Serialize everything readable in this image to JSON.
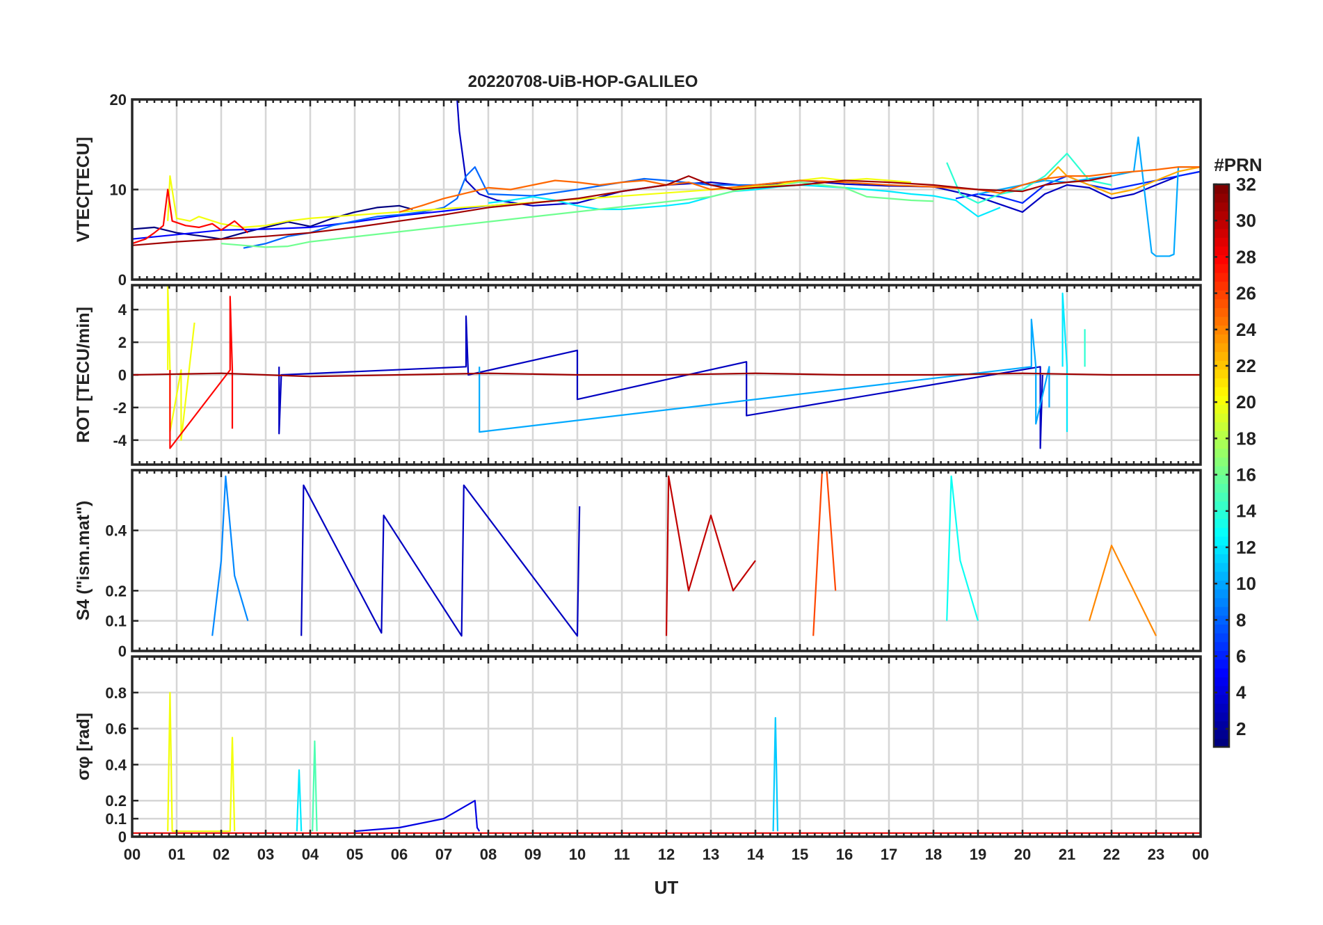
{
  "figure_title": "20220708-UiB-HOP-GALILEO",
  "colorbar": {
    "label": "#PRN",
    "ticks": [
      "2",
      "4",
      "6",
      "8",
      "10",
      "12",
      "14",
      "16",
      "18",
      "20",
      "22",
      "24",
      "26",
      "28",
      "30",
      "32"
    ],
    "range": [
      1,
      32
    ],
    "colormap": "jet"
  },
  "x_axis": {
    "label": "UT",
    "tick_labels": [
      "00",
      "01",
      "02",
      "03",
      "04",
      "05",
      "06",
      "07",
      "08",
      "09",
      "10",
      "11",
      "12",
      "13",
      "14",
      "15",
      "16",
      "17",
      "18",
      "19",
      "20",
      "21",
      "22",
      "23",
      "00"
    ],
    "range_hours": [
      0,
      24
    ]
  },
  "chart_data": [
    {
      "type": "line",
      "panel": "vtec",
      "ylabel": "VTEC[TECU]",
      "ylim": [
        0,
        20
      ],
      "yticks": [
        0,
        10,
        20
      ],
      "grid": true,
      "series": [
        {
          "prn": 1,
          "x": [
            0.0,
            0.5,
            1.0,
            1.6,
            2.0,
            2.5,
            3.0,
            3.5,
            4.0,
            4.5,
            5.0,
            5.5,
            6.0,
            6.3
          ],
          "y": [
            5.6,
            5.8,
            5.2,
            4.8,
            4.5,
            5.2,
            5.8,
            6.4,
            5.9,
            6.8,
            7.5,
            8.0,
            8.2,
            7.8
          ]
        },
        {
          "prn": 3,
          "x": [
            7.3,
            7.35,
            7.5,
            7.8,
            8.2,
            9.0,
            10.0,
            11.0,
            12.0,
            13.0,
            14.0,
            15.0,
            16.0,
            17.0,
            18.0,
            19.0,
            20.0,
            20.5,
            21.0,
            21.5,
            22.0,
            22.5,
            23.0,
            23.5,
            24.0
          ],
          "y": [
            20,
            16.5,
            11.0,
            9.5,
            8.8,
            8.2,
            8.5,
            9.8,
            10.5,
            10.8,
            10.3,
            11.0,
            10.6,
            10.4,
            10.3,
            9.2,
            7.5,
            9.5,
            10.5,
            10.2,
            9.0,
            9.5,
            10.5,
            11.5,
            12.0
          ]
        },
        {
          "prn": 5,
          "x": [
            0.0,
            1.0,
            2.0,
            3.0,
            4.0,
            5.0,
            6.0,
            7.0,
            8.0,
            8.5
          ],
          "y": [
            4.5,
            5.0,
            5.5,
            5.6,
            5.8,
            6.4,
            7.1,
            7.6,
            8.2,
            8.4
          ]
        },
        {
          "prn": 6,
          "x": [
            18.5,
            19.0,
            19.5,
            20.0,
            20.5,
            21.0,
            21.5,
            22.0,
            22.5,
            23.0,
            23.5,
            24.0
          ],
          "y": [
            9.0,
            9.5,
            9.2,
            8.5,
            10.5,
            11.5,
            10.5,
            10.0,
            10.5,
            11.0,
            11.5,
            12.0
          ]
        },
        {
          "prn": 8,
          "x": [
            2.5,
            3.0,
            3.5,
            4.0,
            4.5,
            5.0,
            5.5,
            6.0,
            6.5,
            7.0,
            7.3,
            7.5,
            7.7,
            8.0,
            9.0,
            10.0,
            11.0,
            11.5,
            12.0,
            13.0,
            14.0,
            15.0,
            16.0
          ],
          "y": [
            3.5,
            4.0,
            4.8,
            5.2,
            6.0,
            6.5,
            7.0,
            7.2,
            7.5,
            8.0,
            9.0,
            11.5,
            12.5,
            9.5,
            9.3,
            10.0,
            10.8,
            11.2,
            11.0,
            10.5,
            10.5,
            11.0,
            10.8
          ]
        },
        {
          "prn": 10,
          "x": [
            19.0,
            19.5,
            20.0,
            20.5,
            21.0,
            21.5,
            22.0,
            22.5,
            22.6,
            22.9,
            23.0,
            23.3,
            23.4,
            23.5,
            24.0
          ],
          "y": [
            9.5,
            10.0,
            10.5,
            11.0,
            10.8,
            11.2,
            11.5,
            12.0,
            15.8,
            3.0,
            2.6,
            2.6,
            2.8,
            12.5,
            12.5
          ]
        },
        {
          "prn": 12,
          "x": [
            8.0,
            8.5,
            9.0,
            9.5,
            10.0,
            10.5,
            11.0,
            11.5,
            12.0,
            12.5,
            13.0,
            13.5,
            14.0,
            14.5,
            15.0,
            16.0,
            17.0,
            17.5,
            18.0,
            18.5,
            19.0,
            19.5
          ],
          "y": [
            8.5,
            8.8,
            9.2,
            8.8,
            8.2,
            7.8,
            7.8,
            8.0,
            8.2,
            8.5,
            9.2,
            9.8,
            10.0,
            10.3,
            10.5,
            10.2,
            9.8,
            9.5,
            9.3,
            8.8,
            7.0,
            8.0
          ]
        },
        {
          "prn": 14,
          "x": [
            18.3,
            18.6,
            19.0,
            19.5,
            20.0,
            20.5,
            21.0,
            21.5,
            22.0
          ],
          "y": [
            13.0,
            9.5,
            8.5,
            9.5,
            10.0,
            11.5,
            14.0,
            11.0,
            10.5
          ]
        },
        {
          "prn": 16,
          "x": [
            2.0,
            2.5,
            3.0,
            3.5,
            4.0,
            13.0,
            13.5,
            14.0,
            15.0,
            16.0,
            16.5,
            17.0,
            17.5,
            18.0
          ],
          "y": [
            4.0,
            3.8,
            3.6,
            3.7,
            4.2,
            9.2,
            9.8,
            10.2,
            10.8,
            10.2,
            9.2,
            9.0,
            8.8,
            8.7
          ]
        },
        {
          "prn": 20,
          "x": [
            0.8,
            0.85,
            1.0,
            1.3,
            1.5,
            2.0,
            2.5,
            3.0,
            3.5,
            4.0,
            14.5,
            15.0,
            15.5,
            16.0,
            16.5,
            17.0,
            17.5
          ],
          "y": [
            6.5,
            11.5,
            6.8,
            6.5,
            7.0,
            6.2,
            5.8,
            6.0,
            6.5,
            6.8,
            10.5,
            11.0,
            11.3,
            11.0,
            11.2,
            11.0,
            10.8
          ]
        },
        {
          "prn": 23,
          "x": [
            20.5,
            20.8,
            21.0,
            21.5,
            22.0,
            22.5,
            23.0,
            23.5,
            24.0
          ],
          "y": [
            11.0,
            12.5,
            11.5,
            10.5,
            9.5,
            10.0,
            11.0,
            12.0,
            12.5
          ]
        },
        {
          "prn": 25,
          "x": [
            6.0,
            6.5,
            7.0,
            7.5,
            8.0,
            8.5,
            9.0,
            9.5,
            10.0,
            10.5,
            11.0,
            11.5,
            12.0,
            12.5,
            13.0,
            14.0,
            15.0,
            16.0,
            17.0,
            18.0,
            19.0,
            19.5,
            20.0,
            20.5,
            21.0,
            21.5,
            22.0,
            22.5,
            23.0,
            23.5,
            24.0
          ],
          "y": [
            7.5,
            8.2,
            9.0,
            9.6,
            10.2,
            10.0,
            10.5,
            11.0,
            10.8,
            10.5,
            10.8,
            11.0,
            10.5,
            10.8,
            10.0,
            10.5,
            11.0,
            10.8,
            10.5,
            10.3,
            10.0,
            9.6,
            10.5,
            11.2,
            11.5,
            11.5,
            11.8,
            12.0,
            12.2,
            12.5,
            12.5
          ]
        },
        {
          "prn": 28,
          "x": [
            0.0,
            0.3,
            0.5,
            0.7,
            0.8,
            0.9,
            1.2,
            1.5,
            1.8,
            2.0,
            2.3,
            2.6
          ],
          "y": [
            4.0,
            4.5,
            5.2,
            6.0,
            10.0,
            6.5,
            6.0,
            5.8,
            6.2,
            5.5,
            6.5,
            5.2
          ]
        },
        {
          "prn": 31,
          "x": [
            0.0,
            1.0,
            2.0,
            3.0,
            4.0,
            5.0,
            6.0,
            7.0,
            8.0,
            9.0,
            10.0,
            11.0,
            12.0,
            12.5,
            13.0,
            13.5,
            14.0,
            15.0,
            16.0,
            17.0,
            18.0,
            19.0,
            20.0,
            20.5,
            21.0,
            21.5,
            22.0
          ],
          "y": [
            3.8,
            4.2,
            4.5,
            4.8,
            5.2,
            5.8,
            6.5,
            7.2,
            8.0,
            8.5,
            9.0,
            9.8,
            10.5,
            11.5,
            10.5,
            10.0,
            10.2,
            10.5,
            11.0,
            10.8,
            10.5,
            10.0,
            9.8,
            10.5,
            10.8,
            11.0,
            11.5
          ]
        }
      ]
    },
    {
      "type": "line",
      "panel": "rot",
      "ylabel": "ROT [TECU/min]",
      "ylim": [
        -5.5,
        5.5
      ],
      "yticks": [
        -4,
        -2,
        0,
        2,
        4
      ],
      "grid": true,
      "series": [
        {
          "prn": 3,
          "x": [
            3.3,
            3.3,
            3.35,
            7.5,
            7.5,
            7.55,
            10.0,
            10.0,
            13.8,
            13.8,
            20.4,
            20.4,
            20.45
          ],
          "y": [
            0.5,
            -3.6,
            0.0,
            0.5,
            3.6,
            0.0,
            1.5,
            -1.5,
            0.8,
            -2.5,
            0.5,
            -4.5,
            0.0
          ]
        },
        {
          "prn": 10,
          "x": [
            7.8,
            7.8,
            20.2,
            20.2,
            20.3,
            20.3,
            20.6,
            20.6
          ],
          "y": [
            0.5,
            -3.5,
            0.5,
            3.4,
            0.5,
            -3.0,
            0.5,
            -2.0
          ]
        },
        {
          "prn": 12,
          "x": [
            20.9,
            20.9,
            21.0,
            21.0
          ],
          "y": [
            0.5,
            5.0,
            0.5,
            -3.5
          ]
        },
        {
          "prn": 14,
          "x": [
            21.4,
            21.4
          ],
          "y": [
            0.5,
            2.8
          ]
        },
        {
          "prn": 20,
          "x": [
            0.8,
            0.8,
            0.85,
            0.85,
            1.1,
            1.1,
            1.4
          ],
          "y": [
            0.3,
            5.5,
            0.3,
            -3.5,
            0.3,
            -4.0,
            3.2
          ]
        },
        {
          "prn": 28,
          "x": [
            0.85,
            0.85,
            2.2,
            2.2,
            2.25,
            2.25
          ],
          "y": [
            0.3,
            -4.5,
            0.3,
            4.8,
            0.3,
            -3.3
          ]
        },
        {
          "prn": 31,
          "x": [
            0.0,
            2.0,
            4.0,
            6.0,
            8.0,
            10.0,
            12.0,
            14.0,
            16.0,
            18.0,
            20.0,
            22.0,
            24.0
          ],
          "y": [
            0.0,
            0.1,
            -0.1,
            0.0,
            0.1,
            0.0,
            0.0,
            0.1,
            0.0,
            0.0,
            0.1,
            0.0,
            0.0
          ]
        }
      ]
    },
    {
      "type": "line",
      "panel": "s4",
      "ylabel": "S4 (\"ism.mat\")",
      "ylim": [
        0,
        0.6
      ],
      "yticks": [
        0,
        0.1,
        0.2,
        0.4
      ],
      "grid": true,
      "series": [
        {
          "prn": 3,
          "x": [
            3.8,
            3.85,
            5.6,
            5.65,
            7.4,
            7.45,
            10.0,
            10.05
          ],
          "y": [
            0.05,
            0.55,
            0.06,
            0.45,
            0.05,
            0.55,
            0.05,
            0.48
          ]
        },
        {
          "prn": 9,
          "x": [
            1.8,
            2.0,
            2.1,
            2.3,
            2.6
          ],
          "y": [
            0.05,
            0.3,
            0.58,
            0.25,
            0.1
          ]
        },
        {
          "prn": 13,
          "x": [
            18.3,
            18.4,
            18.6,
            19.0
          ],
          "y": [
            0.1,
            0.58,
            0.3,
            0.1
          ]
        },
        {
          "prn": 26,
          "x": [
            15.3,
            15.5,
            15.6,
            15.8
          ],
          "y": [
            0.05,
            0.6,
            0.6,
            0.2
          ]
        },
        {
          "prn": 30,
          "x": [
            12.0,
            12.05,
            12.5,
            13.0,
            13.5,
            14.0
          ],
          "y": [
            0.05,
            0.58,
            0.2,
            0.45,
            0.2,
            0.3
          ]
        },
        {
          "prn": 24,
          "x": [
            21.5,
            22.0,
            22.5,
            23.0
          ],
          "y": [
            0.1,
            0.35,
            0.2,
            0.05
          ]
        }
      ]
    },
    {
      "type": "line",
      "panel": "sigma_phi",
      "ylabel": "σφ [rad]",
      "ylim": [
        0,
        1.0
      ],
      "yticks": [
        0,
        0.1,
        0.2,
        0.4,
        0.6,
        0.8
      ],
      "grid": true,
      "series": [
        {
          "prn": 20,
          "x": [
            0.8,
            0.85,
            0.9,
            2.2,
            2.25,
            2.3
          ],
          "y": [
            0.03,
            0.8,
            0.03,
            0.03,
            0.55,
            0.03
          ]
        },
        {
          "prn": 11,
          "x": [
            14.4,
            14.45,
            14.5
          ],
          "y": [
            0.03,
            0.66,
            0.03
          ]
        },
        {
          "prn": 15,
          "x": [
            4.05,
            4.1,
            4.15
          ],
          "y": [
            0.03,
            0.53,
            0.03
          ]
        },
        {
          "prn": 12,
          "x": [
            3.7,
            3.75,
            3.8
          ],
          "y": [
            0.03,
            0.37,
            0.03
          ]
        },
        {
          "prn": 4,
          "x": [
            5.0,
            6.0,
            7.0,
            7.7,
            7.75,
            7.8
          ],
          "y": [
            0.03,
            0.05,
            0.1,
            0.2,
            0.05,
            0.03
          ]
        },
        {
          "prn": 29,
          "x": [
            0.0,
            24.0
          ],
          "y": [
            0.02,
            0.02
          ]
        }
      ]
    }
  ]
}
